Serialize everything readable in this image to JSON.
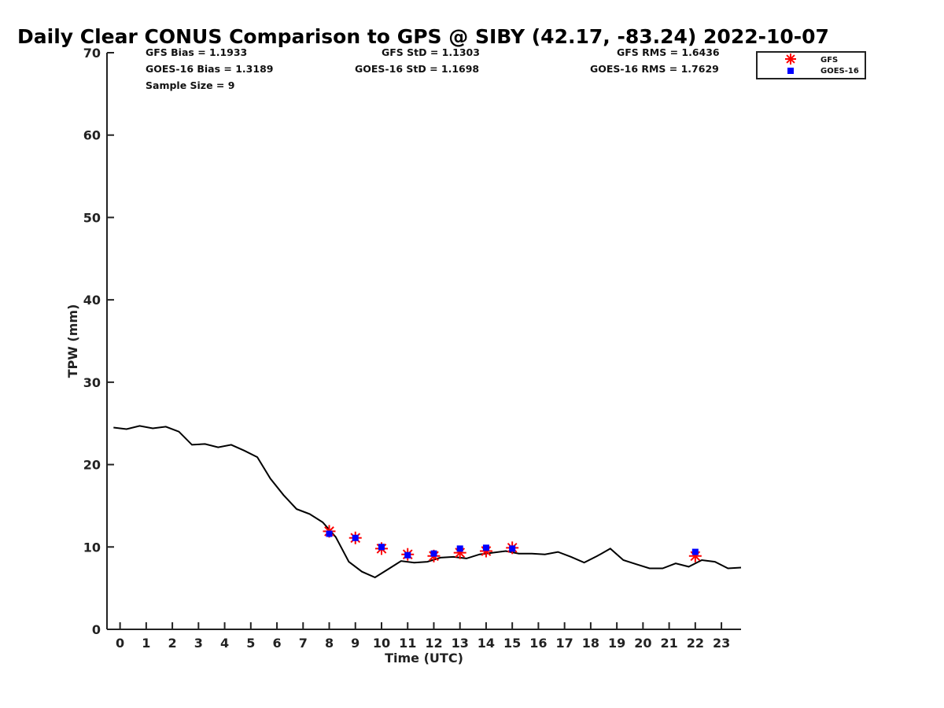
{
  "chart_data": {
    "type": "scatter",
    "title": "Daily Clear CONUS Comparison to GPS @ SIBY (42.17, -83.24) 2022-10-07",
    "xlabel": "Time (UTC)",
    "ylabel": "TPW (mm)",
    "xlim": [
      -0.5,
      23.75
    ],
    "ylim": [
      0,
      70
    ],
    "xticks": [
      0,
      1,
      2,
      3,
      4,
      5,
      6,
      7,
      8,
      9,
      10,
      11,
      12,
      13,
      14,
      15,
      16,
      17,
      18,
      19,
      20,
      21,
      22,
      23
    ],
    "yticks": [
      0,
      10,
      20,
      30,
      40,
      50,
      60,
      70
    ],
    "grid": false,
    "legend_position": "top-right",
    "stats": {
      "gfs_bias": "GFS Bias = 1.1933",
      "goes_bias": "GOES-16 Bias = 1.3189",
      "sample_size": "Sample Size = 9",
      "gfs_std": "GFS StD = 1.1303",
      "goes_std": "GOES-16 StD = 1.1698",
      "gfs_rms": "GFS RMS = 1.6436",
      "goes_rms": "GOES-16 RMS = 1.7629"
    },
    "series": [
      {
        "name": "",
        "kind": "line",
        "color": "#000000",
        "x": [
          -0.25,
          0.25,
          0.75,
          1.25,
          1.75,
          2.25,
          2.75,
          3.25,
          3.75,
          4.25,
          4.75,
          5.25,
          5.75,
          6.25,
          6.75,
          7.25,
          7.75,
          8.25,
          8.75,
          9.25,
          9.75,
          10.25,
          10.75,
          11.25,
          11.75,
          12.25,
          12.75,
          13.25,
          13.75,
          14.25,
          14.75,
          15.25,
          15.75,
          16.25,
          16.75,
          17.25,
          17.75,
          18.25,
          18.75,
          19.25,
          19.75,
          20.25,
          20.75,
          21.25,
          21.75,
          22.25,
          22.75,
          23.25,
          23.75
        ],
        "y": [
          24.5,
          24.3,
          24.7,
          24.4,
          24.6,
          24.0,
          22.4,
          22.5,
          22.1,
          22.4,
          21.7,
          20.9,
          18.3,
          16.3,
          14.6,
          14.0,
          13.0,
          11.2,
          8.2,
          7.0,
          6.3,
          7.3,
          8.3,
          8.1,
          8.2,
          8.7,
          8.8,
          8.6,
          9.1,
          9.3,
          9.5,
          9.2,
          9.2,
          9.1,
          9.4,
          8.8,
          8.1,
          8.9,
          9.8,
          8.4,
          7.9,
          7.4,
          7.4,
          8.0,
          7.6,
          8.4,
          8.2,
          7.4,
          7.5
        ]
      },
      {
        "name": "GFS",
        "kind": "marker",
        "marker": "asterisk",
        "color": "#ff0000",
        "x": [
          8,
          9,
          10,
          11,
          12,
          13,
          14,
          15,
          22
        ],
        "y": [
          11.9,
          11.1,
          9.8,
          9.1,
          8.9,
          9.3,
          9.5,
          9.9,
          8.9
        ]
      },
      {
        "name": "GOES-16",
        "kind": "marker",
        "marker": "square",
        "color": "#0000ff",
        "x": [
          8,
          9,
          10,
          11,
          12,
          13,
          14,
          15,
          22
        ],
        "y": [
          11.6,
          11.1,
          10.0,
          9.0,
          9.2,
          9.8,
          9.9,
          9.8,
          9.4
        ]
      }
    ]
  }
}
